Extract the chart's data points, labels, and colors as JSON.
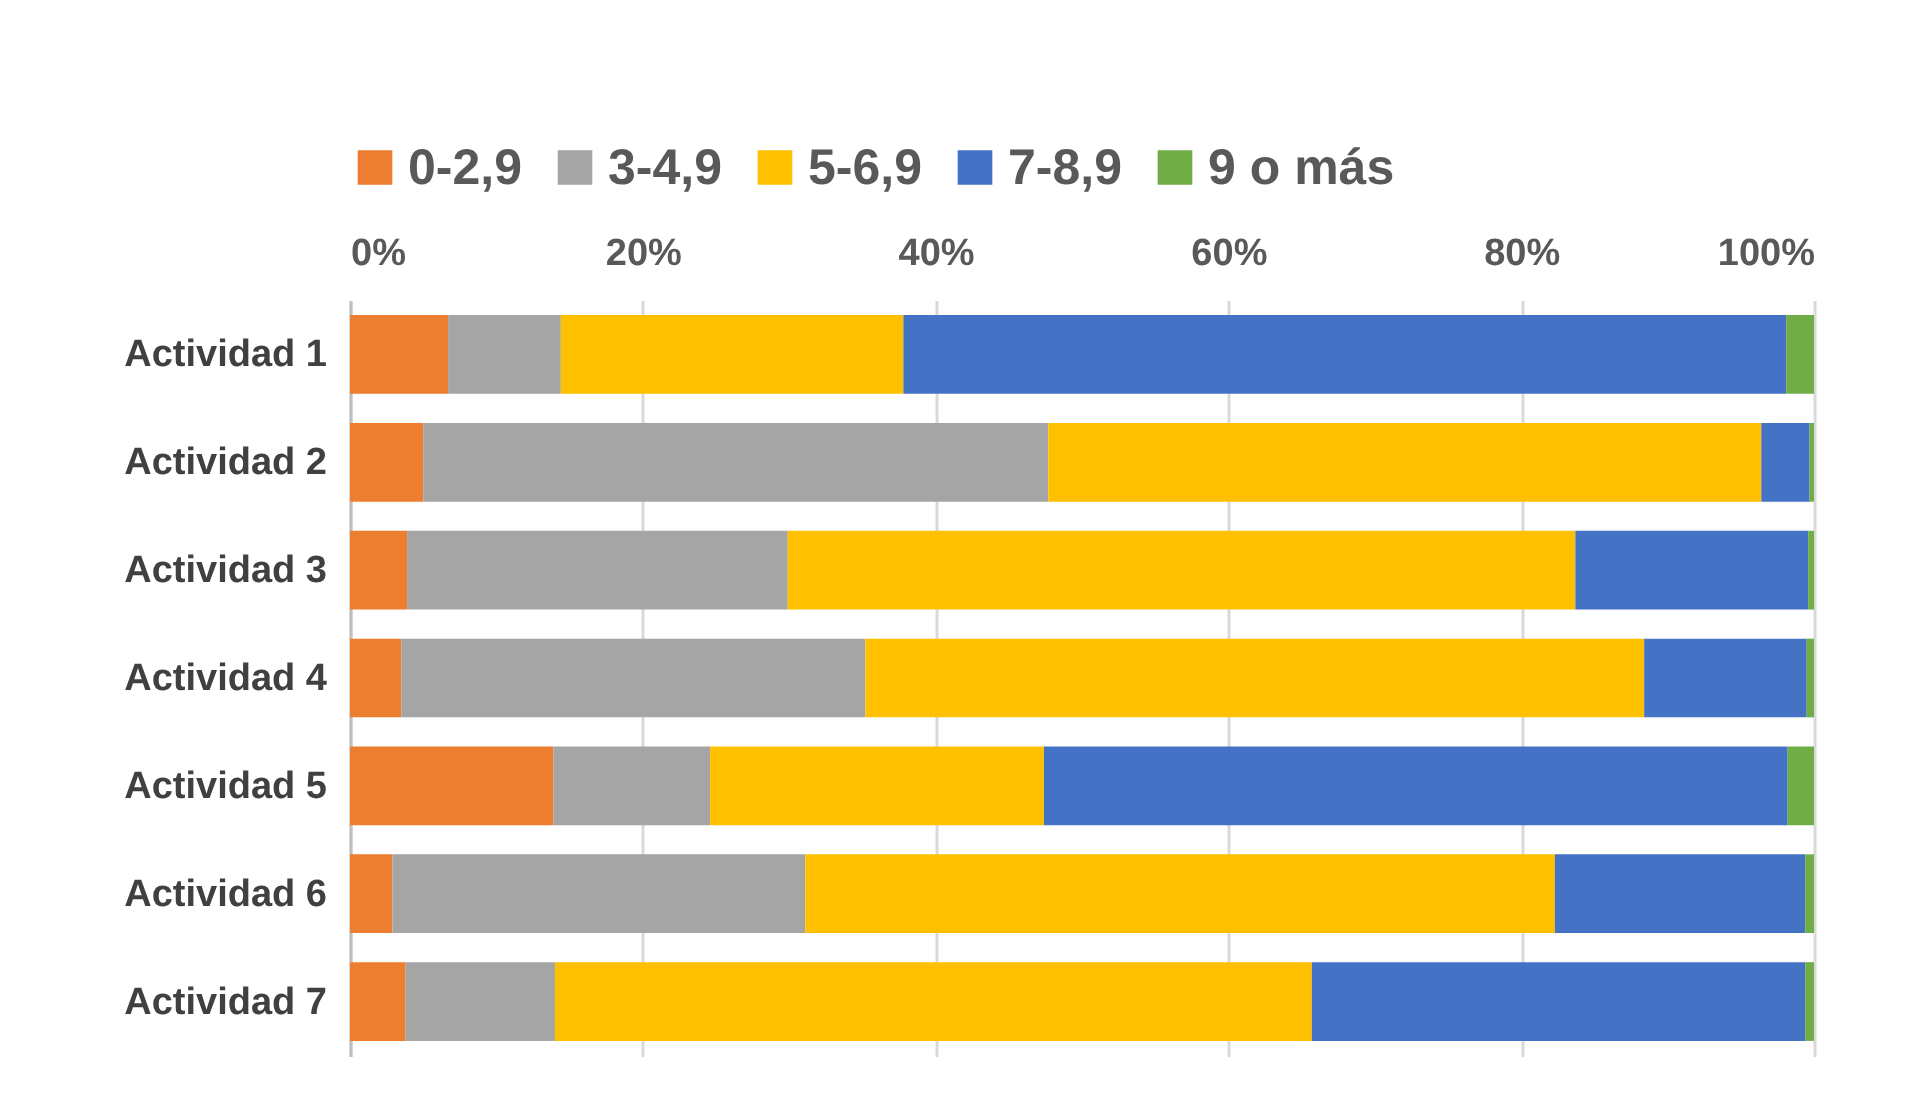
{
  "chart_data": {
    "type": "bar",
    "orientation": "horizontal",
    "stacked": true,
    "categories": [
      "Actividad 1",
      "Actividad 2",
      "Actividad 3",
      "Actividad 4",
      "Actividad 5",
      "Actividad 6",
      "Actividad 7"
    ],
    "series": [
      {
        "name": "0-2,9",
        "color": "#ed7d31",
        "values": [
          6.7,
          5.0,
          3.9,
          3.5,
          13.9,
          2.9,
          3.8
        ]
      },
      {
        "name": "3-4,9",
        "color": "#a5a5a5",
        "values": [
          7.7,
          42.7,
          26.0,
          31.7,
          10.7,
          28.2,
          10.2
        ]
      },
      {
        "name": "5-6,9",
        "color": "#ffc000",
        "values": [
          23.4,
          48.7,
          53.8,
          53.2,
          22.8,
          51.2,
          51.7
        ]
      },
      {
        "name": "7-8,9",
        "color": "#4472c4",
        "values": [
          60.3,
          3.3,
          15.9,
          11.1,
          50.8,
          17.1,
          33.7
        ]
      },
      {
        "name": "9 o más",
        "color": "#70ad47",
        "values": [
          1.9,
          0.3,
          0.4,
          0.5,
          1.8,
          0.6,
          0.6
        ]
      }
    ],
    "xlim": [
      0,
      100
    ],
    "xticks": [
      {
        "value": 0,
        "label": "0%"
      },
      {
        "value": 20,
        "label": "20%"
      },
      {
        "value": 40,
        "label": "40%"
      },
      {
        "value": 60,
        "label": "60%"
      },
      {
        "value": 80,
        "label": "80%"
      },
      {
        "value": 100,
        "label": "100%"
      }
    ],
    "grid": "x",
    "legend": "top"
  }
}
